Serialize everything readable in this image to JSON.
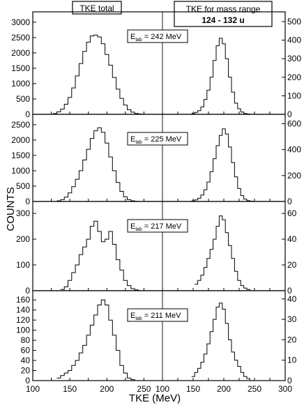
{
  "labels": {
    "tke_total": "TKE total",
    "tke_mass_line1": "TKE for mass range",
    "tke_mass_line2": "124 - 132 u",
    "ylabel": "COUNTS",
    "xlabel": "TKE (MeV)"
  },
  "chart_data": {
    "type": "step-histogram",
    "title": "",
    "xlabel": "TKE (MeV)",
    "ylabel": "COUNTS",
    "x_tick_labels": [
      "100",
      "150",
      "200",
      "250",
      "100",
      "150",
      "200",
      "250",
      "300"
    ],
    "left_xlim": [
      100,
      275
    ],
    "right_xlim": [
      100,
      300
    ],
    "panels": [
      {
        "energy_label": "E",
        "energy_sub": "lab",
        "energy_value": " = 242 MeV",
        "left_ylim": [
          0,
          3200
        ],
        "left_ticks": [
          0,
          500,
          1000,
          1500,
          2000,
          2500,
          3000
        ],
        "right_ylim": [
          0,
          530
        ],
        "right_ticks": [
          0,
          100,
          200,
          300,
          400,
          500
        ],
        "left_series": {
          "name": "TKE total",
          "x": [
            130,
            135,
            140,
            145,
            150,
            155,
            160,
            165,
            170,
            175,
            180,
            185,
            190,
            195,
            200,
            205,
            210,
            215,
            220,
            225,
            230,
            235,
            240,
            245,
            250
          ],
          "y": [
            30,
            80,
            170,
            330,
            550,
            860,
            1250,
            1650,
            2050,
            2350,
            2550,
            2580,
            2520,
            2300,
            1950,
            1600,
            1200,
            820,
            520,
            300,
            150,
            70,
            30,
            10,
            0
          ]
        },
        "right_series": {
          "name": "TKE for mass range 124 - 132 u",
          "x": [
            150,
            155,
            160,
            165,
            170,
            175,
            180,
            185,
            190,
            195,
            200,
            205,
            210,
            215,
            220,
            225,
            230,
            235,
            240,
            245
          ],
          "y": [
            5,
            10,
            20,
            40,
            80,
            130,
            200,
            290,
            370,
            410,
            380,
            300,
            200,
            120,
            60,
            30,
            12,
            5,
            2,
            0
          ]
        }
      },
      {
        "energy_label": "E",
        "energy_sub": "lab",
        "energy_value": " = 225 MeV",
        "left_ylim": [
          0,
          2700
        ],
        "left_ticks": [
          0,
          500,
          1000,
          1500,
          2000,
          2500
        ],
        "right_ylim": [
          0,
          640
        ],
        "right_ticks": [
          0,
          200,
          400,
          600
        ],
        "left_series": {
          "name": "TKE total",
          "x": [
            135,
            140,
            145,
            150,
            155,
            160,
            165,
            170,
            175,
            180,
            185,
            190,
            195,
            200,
            205,
            210,
            215,
            220,
            225,
            230,
            235,
            240,
            245
          ],
          "y": [
            20,
            60,
            140,
            280,
            480,
            720,
            1000,
            1350,
            1700,
            2050,
            2300,
            2400,
            2250,
            1900,
            1450,
            1000,
            620,
            330,
            150,
            60,
            20,
            5,
            0
          ]
        },
        "right_series": {
          "name": "TKE for mass range 124 - 132 u",
          "x": [
            150,
            155,
            160,
            165,
            170,
            175,
            180,
            185,
            190,
            195,
            200,
            205,
            210,
            215,
            220,
            225,
            230,
            235,
            240,
            245,
            250
          ],
          "y": [
            5,
            12,
            25,
            50,
            90,
            150,
            230,
            330,
            430,
            510,
            560,
            520,
            420,
            300,
            190,
            100,
            45,
            18,
            6,
            2,
            0
          ]
        }
      },
      {
        "energy_label": "E",
        "energy_sub": "lab",
        "energy_value": " = 217 MeV",
        "left_ylim": [
          0,
          330
        ],
        "left_ticks": [
          0,
          100,
          200,
          300
        ],
        "right_ylim": [
          0,
          66
        ],
        "right_ticks": [
          0,
          20,
          40,
          60
        ],
        "left_series": {
          "name": "TKE total",
          "x": [
            140,
            145,
            150,
            155,
            160,
            165,
            170,
            175,
            180,
            185,
            190,
            195,
            200,
            205,
            210,
            215,
            220,
            225,
            230,
            235,
            240,
            245
          ],
          "y": [
            5,
            15,
            40,
            70,
            100,
            140,
            170,
            200,
            250,
            270,
            230,
            190,
            200,
            230,
            180,
            120,
            80,
            40,
            20,
            8,
            3,
            0
          ]
        },
        "right_series": {
          "name": "TKE for mass range 124 - 132 u",
          "x": [
            155,
            160,
            165,
            170,
            175,
            180,
            185,
            190,
            195,
            200,
            205,
            210,
            215,
            220,
            225,
            230,
            235,
            240,
            245
          ],
          "y": [
            5,
            8,
            12,
            18,
            25,
            32,
            40,
            50,
            58,
            55,
            45,
            35,
            25,
            15,
            8,
            4,
            2,
            1,
            0
          ]
        }
      },
      {
        "energy_label": "E",
        "energy_sub": "lab",
        "energy_value": " = 211 MeV",
        "left_ylim": [
          0,
          170
        ],
        "left_ticks": [
          0,
          20,
          40,
          60,
          80,
          100,
          120,
          140,
          160
        ],
        "right_ylim": [
          0,
          42
        ],
        "right_ticks": [
          0,
          10,
          20,
          30,
          40
        ],
        "left_series": {
          "name": "TKE total",
          "x": [
            135,
            140,
            145,
            150,
            155,
            160,
            165,
            170,
            175,
            180,
            185,
            190,
            195,
            200,
            205,
            210,
            215,
            220,
            225,
            230,
            235,
            240
          ],
          "y": [
            5,
            10,
            15,
            20,
            30,
            40,
            55,
            70,
            90,
            110,
            130,
            150,
            160,
            150,
            120,
            90,
            60,
            30,
            15,
            5,
            2,
            0
          ]
        },
        "right_series": {
          "name": "TKE for mass range 124 - 132 u",
          "x": [
            150,
            155,
            160,
            165,
            170,
            175,
            180,
            185,
            190,
            195,
            200,
            205,
            210,
            215,
            220,
            225,
            230,
            235,
            240,
            245
          ],
          "y": [
            2,
            4,
            6,
            9,
            13,
            18,
            24,
            30,
            36,
            38,
            35,
            28,
            20,
            14,
            10,
            7,
            4,
            2,
            1,
            0
          ]
        }
      }
    ]
  }
}
